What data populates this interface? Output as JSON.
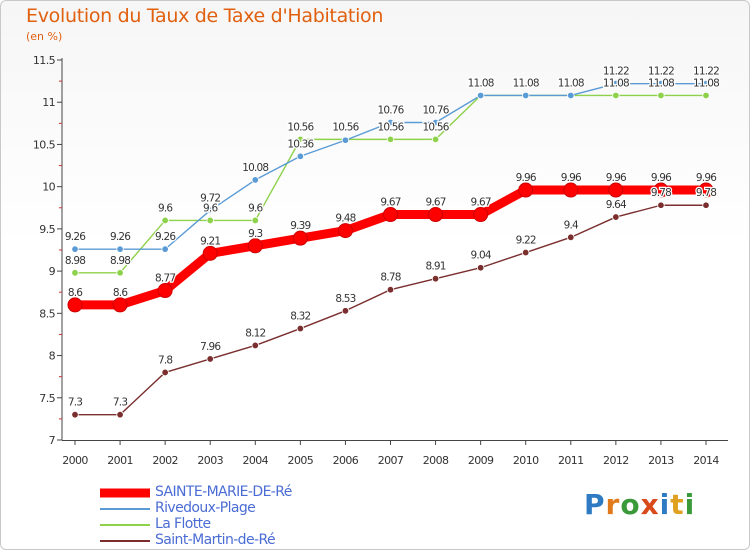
{
  "title": "Evolution du Taux de Taxe d'Habitation",
  "subtitle": "(en %)",
  "brand": {
    "text": "Proxiti",
    "letter_colors": [
      "#2e7bc4",
      "#e07a1c",
      "#3a9a3a",
      "#d84a1a",
      "#2e7bc4",
      "#e0a020",
      "#3a9a3a"
    ]
  },
  "chart_data": {
    "type": "line",
    "x": [
      "2000",
      "2001",
      "2002",
      "2003",
      "2004",
      "2005",
      "2006",
      "2007",
      "2008",
      "2009",
      "2010",
      "2011",
      "2012",
      "2013",
      "2014"
    ],
    "ylim": [
      7,
      11.5
    ],
    "yticks": [
      "7",
      "7.5",
      "8",
      "8.5",
      "9",
      "9.5",
      "10",
      "10.5",
      "11",
      "11.5"
    ],
    "grid": false,
    "legend_position": "bottom-left",
    "series": [
      {
        "name": "SAINTE-MARIE-DE-Ré",
        "color": "#ff0000",
        "emphasis": "thick",
        "values": [
          8.6,
          8.6,
          8.77,
          9.21,
          9.3,
          9.39,
          9.48,
          9.67,
          9.67,
          9.67,
          9.96,
          9.96,
          9.96,
          9.96,
          9.96
        ],
        "labels": [
          "8.6",
          "8.6",
          "8.77",
          "9.21",
          "9.3",
          "9.39",
          "9.48",
          "9.67",
          "9.67",
          "9.67",
          "9.96",
          "9.96",
          "9.96",
          "9.96",
          "9.96"
        ]
      },
      {
        "name": "Rivedoux-Plage",
        "color": "#5b9bd5",
        "emphasis": "normal",
        "values": [
          9.26,
          9.26,
          9.26,
          9.72,
          10.08,
          10.36,
          10.55,
          10.76,
          10.76,
          11.08,
          11.08,
          11.08,
          11.22,
          11.22,
          11.22
        ],
        "labels": [
          "9.26",
          "9.26",
          "9.26",
          "9.72",
          "10.08",
          "10.36",
          "10.55",
          "10.76",
          "10.76",
          "11.08",
          "11.08",
          "11.08",
          "11.22",
          "11.22",
          "11.22"
        ]
      },
      {
        "name": "La Flotte",
        "color": "#8ed14a",
        "emphasis": "normal",
        "values": [
          8.98,
          8.98,
          9.6,
          9.6,
          9.6,
          10.56,
          10.56,
          10.56,
          10.56,
          11.08,
          11.08,
          11.08,
          11.08,
          11.08,
          11.08
        ],
        "labels": [
          "8.98",
          "8.98",
          "9.6",
          "9.6",
          "9.6",
          "10.56",
          "10.56",
          "10.56",
          "10.56",
          "11.08",
          "11.08",
          "11.08",
          "11.08",
          "11.08",
          "11.08"
        ]
      },
      {
        "name": "Saint-Martin-de-Ré",
        "color": "#7a2e2e",
        "emphasis": "normal",
        "values": [
          7.3,
          7.3,
          7.8,
          7.96,
          8.12,
          8.32,
          8.53,
          8.78,
          8.91,
          9.04,
          9.22,
          9.4,
          9.64,
          9.78,
          9.78
        ],
        "labels": [
          "7.3",
          "7.3",
          "7.8",
          "7.96",
          "8.12",
          "8.32",
          "8.53",
          "8.78",
          "8.91",
          "9.04",
          "9.22",
          "9.4",
          "9.64",
          "9.78",
          "9.78"
        ]
      }
    ]
  }
}
